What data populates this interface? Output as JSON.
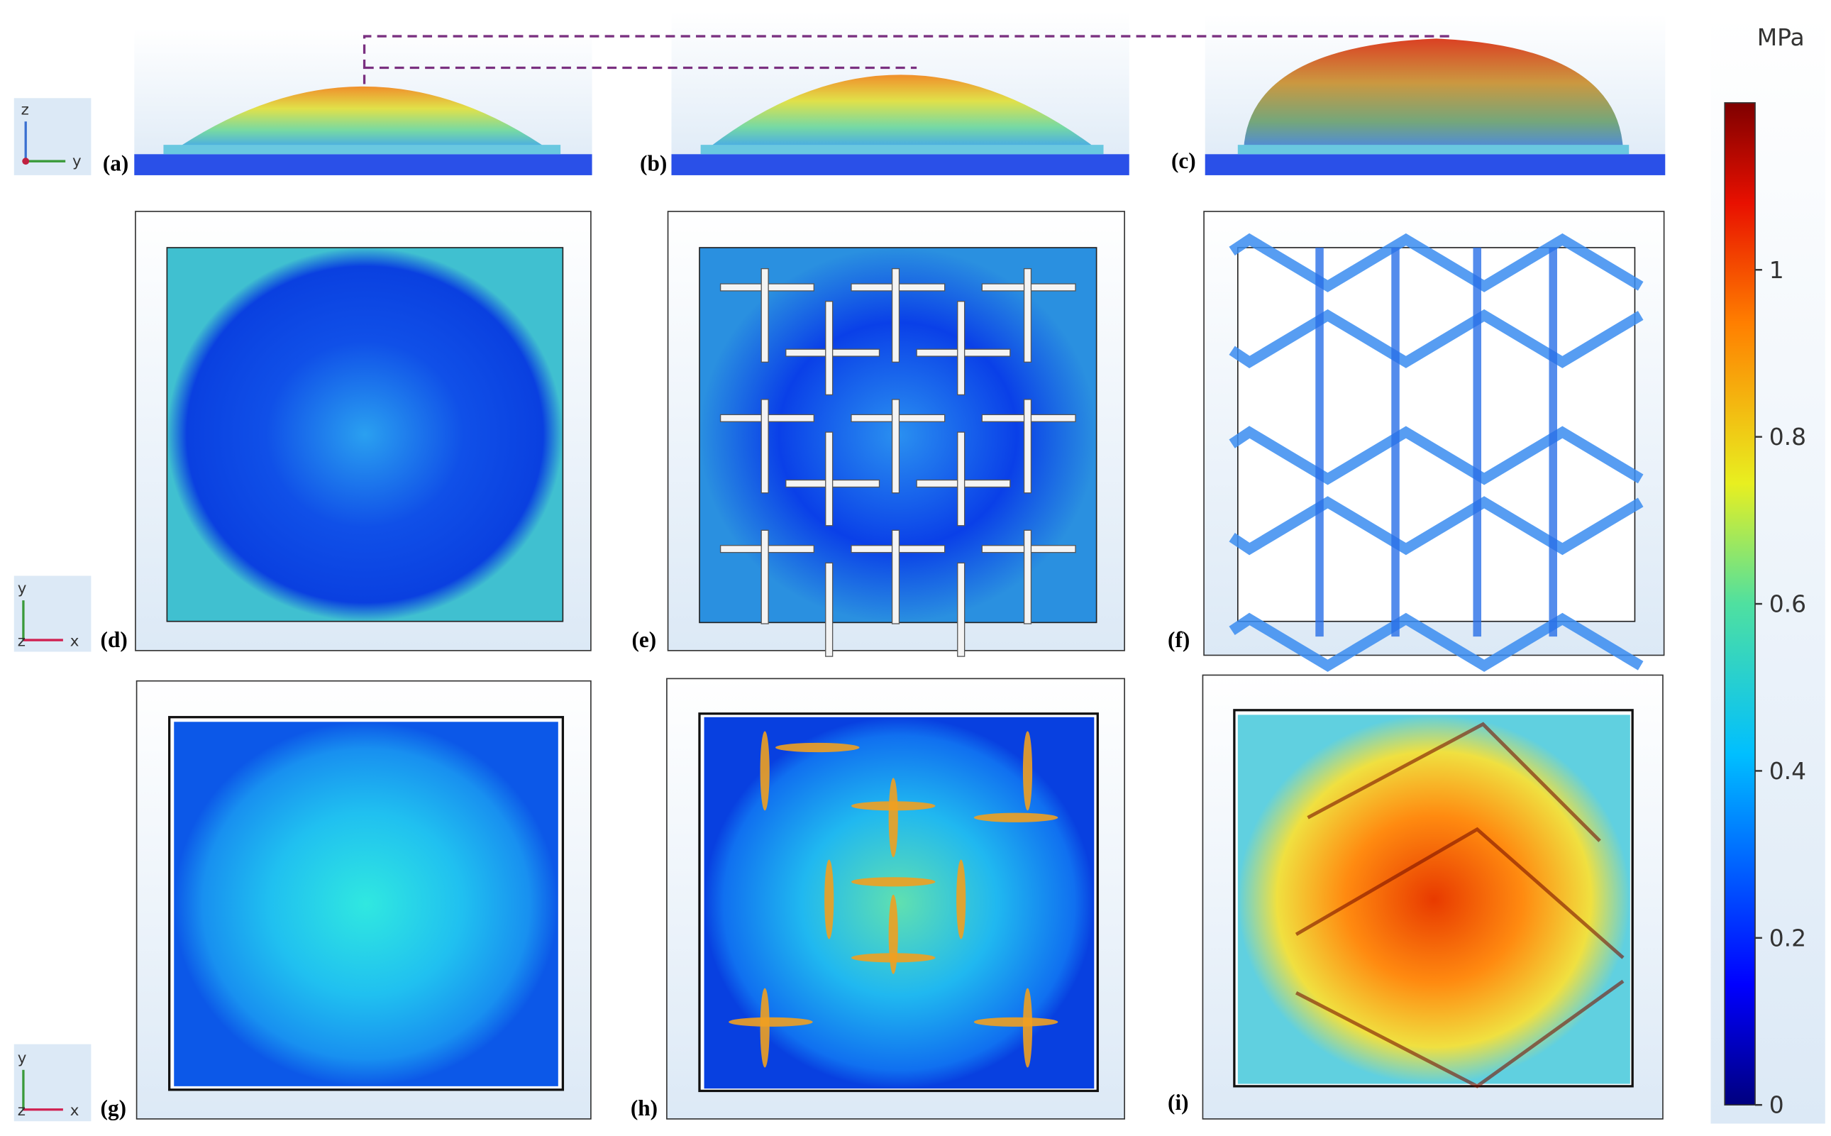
{
  "panels": [
    {
      "label": "(a)"
    },
    {
      "label": "(b)"
    },
    {
      "label": "(c)"
    },
    {
      "label": "(d)"
    },
    {
      "label": "(e)"
    },
    {
      "label": "(f)"
    },
    {
      "label": "(g)"
    },
    {
      "label": "(h)"
    },
    {
      "label": "(i)"
    }
  ],
  "axes_triads": [
    {
      "labels": [
        "z",
        "y"
      ]
    },
    {
      "labels": [
        "y",
        "z",
        "x"
      ]
    },
    {
      "labels": [
        "y",
        "z",
        "x"
      ]
    }
  ],
  "colorbar": {
    "unit": "MPa",
    "lim": [
      0,
      1.2
    ],
    "ticks": [
      0,
      0.2,
      0.4,
      0.6,
      0.8,
      1
    ]
  }
}
